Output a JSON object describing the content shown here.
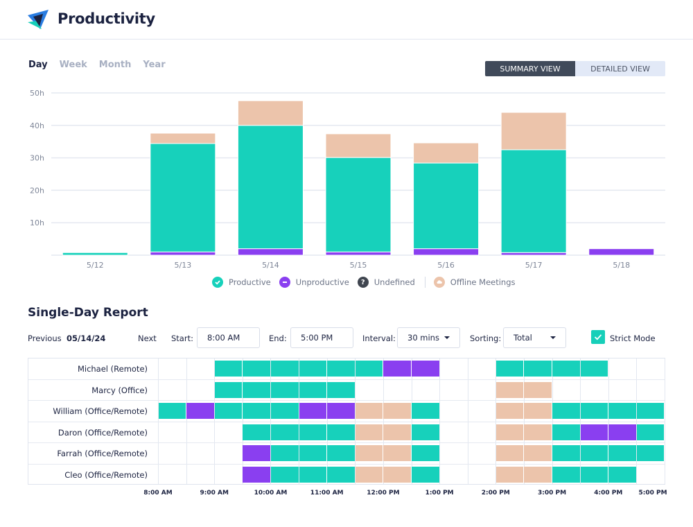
{
  "header": {
    "title": "Productivity",
    "logo": "triangle-logo-icon"
  },
  "periods": [
    {
      "label": "Day",
      "active": true
    },
    {
      "label": "Week",
      "active": false
    },
    {
      "label": "Month",
      "active": false
    },
    {
      "label": "Year",
      "active": false
    }
  ],
  "view_toggle": {
    "summary": "SUMMARY VIEW",
    "detailed": "DETAILED VIEW",
    "active": "summary"
  },
  "colors": {
    "productive": "#17d1bb",
    "unproductive": "#8a3ff0",
    "undefined": "#404650",
    "offline": "#ecc4ab",
    "grid": "#e4e8f0",
    "text_muted": "#7d8597"
  },
  "chart_data": {
    "type": "bar",
    "stacked": true,
    "categories": [
      "5/12",
      "5/13",
      "5/14",
      "5/15",
      "5/16",
      "5/17",
      "5/18"
    ],
    "series": [
      {
        "name": "Unproductive",
        "values": [
          0,
          1,
          2,
          1,
          2,
          0.8,
          2
        ]
      },
      {
        "name": "Productive",
        "values": [
          0.8,
          33.4,
          38,
          29.1,
          26.4,
          31.7,
          0
        ]
      },
      {
        "name": "Undefined",
        "values": [
          0,
          0,
          0,
          0,
          0,
          0,
          0
        ]
      },
      {
        "name": "Offline Meetings",
        "values": [
          0,
          3.2,
          7.6,
          7.3,
          6.2,
          11.5,
          0
        ]
      }
    ],
    "yticks": [
      "10h",
      "20h",
      "30h",
      "40h",
      "50h"
    ],
    "ytick_values": [
      10,
      20,
      30,
      40,
      50
    ],
    "ylim": [
      0,
      50
    ],
    "title": "",
    "xlabel": "",
    "ylabel": "",
    "grid": true,
    "legend_position": "bottom"
  },
  "legend": [
    {
      "label": "Productive",
      "icon": "check-circle-icon"
    },
    {
      "label": "Unproductive",
      "icon": "minus-circle-icon"
    },
    {
      "label": "Undefined",
      "icon": "question-circle-icon"
    },
    {
      "label": "Offline Meetings",
      "icon": "cloud-circle-icon"
    }
  ],
  "report": {
    "title": "Single-Day Report",
    "previous": "Previous",
    "date": "05/14/24",
    "next": "Next",
    "start_label": "Start:",
    "start_value": "8:00 AM",
    "end_label": "End:",
    "end_value": "5:00 PM",
    "interval_label": "Interval:",
    "interval_value": "30 mins",
    "sorting_label": "Sorting:",
    "sorting_value": "Total",
    "strict_mode_label": "Strict Mode",
    "strict_mode": true
  },
  "timeline": {
    "labels": [
      "8:00 AM",
      "9:00 AM",
      "10:00 AM",
      "11:00 AM",
      "12:00 PM",
      "1:00 PM",
      "2:00 PM",
      "3:00 PM",
      "4:00 PM",
      "5:00 PM"
    ],
    "legend_key": "P=productive, U=unproductive, O=offline, _=none",
    "rows": [
      {
        "name": "Michael (Remote)",
        "slots": "__PPPPPPUU__PPPP__"
      },
      {
        "name": "Marcy (Office)",
        "slots": "__PPPPP_____OO____"
      },
      {
        "name": "William (Office/Remote)",
        "slots": "PUPPPUUOOP__OOPPPP"
      },
      {
        "name": "Daron (Office/Remote)",
        "slots": "___PPPPOOP__OOPUUP"
      },
      {
        "name": "Farrah (Office/Remote)",
        "slots": "___UPPPOOP__OOPPPP"
      },
      {
        "name": "Cleo (Office/Remote)",
        "slots": "___UPPPOOP__OOPPP_"
      }
    ]
  }
}
